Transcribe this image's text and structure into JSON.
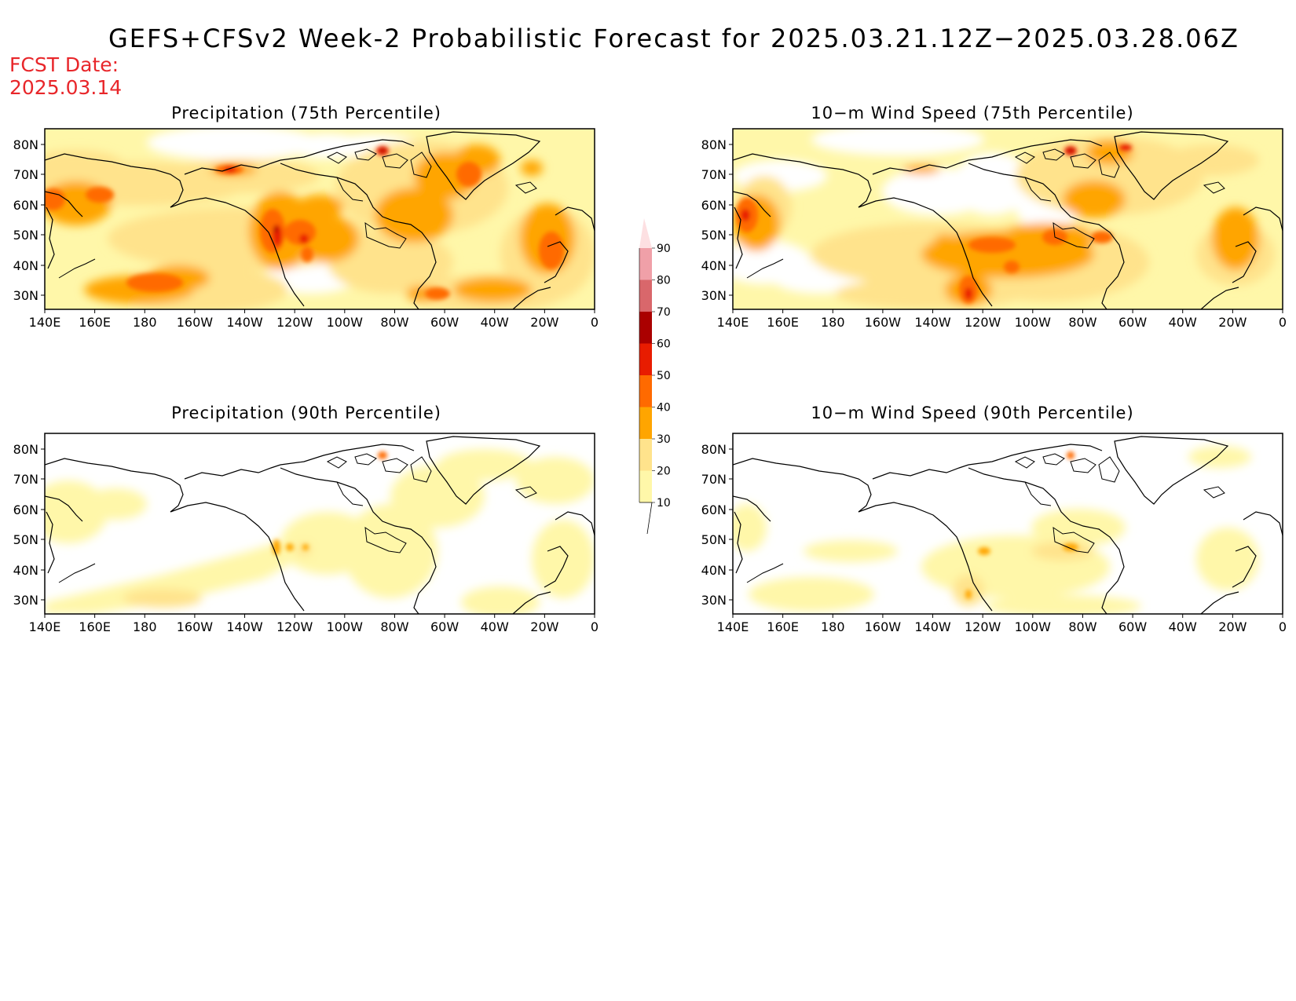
{
  "title": "GEFS+CFSv2 Week-2 Probabilistic Forecast for 2025.03.21.12Z−2025.03.28.06Z",
  "fcst_date": {
    "label": "FCST Date:",
    "value": "2025.03.14"
  },
  "lon_ticks": [
    "140E",
    "160E",
    "180",
    "160W",
    "140W",
    "120W",
    "100W",
    "80W",
    "60W",
    "40W",
    "20W",
    "0"
  ],
  "lat_ticks": [
    "80N",
    "70N",
    "60N",
    "50N",
    "40N",
    "30N"
  ],
  "panels": [
    {
      "id": "p75",
      "title": "Precipitation (75th Percentile)"
    },
    {
      "id": "w75",
      "title": "10−m Wind Speed (75th Percentile)"
    },
    {
      "id": "p90",
      "title": "Precipitation (90th Percentile)"
    },
    {
      "id": "w90",
      "title": "10−m Wind Speed (90th Percentile)"
    }
  ],
  "colorbar": {
    "labels": [
      "10",
      "20",
      "30",
      "40",
      "50",
      "60",
      "70",
      "80",
      "90"
    ],
    "colors": [
      "#fff7a9",
      "#ffe38c",
      "#ffa500",
      "#ff6a00",
      "#e81c00",
      "#aa0000",
      "#d9676b",
      "#f0a0a8",
      "#fde0e2"
    ]
  }
}
